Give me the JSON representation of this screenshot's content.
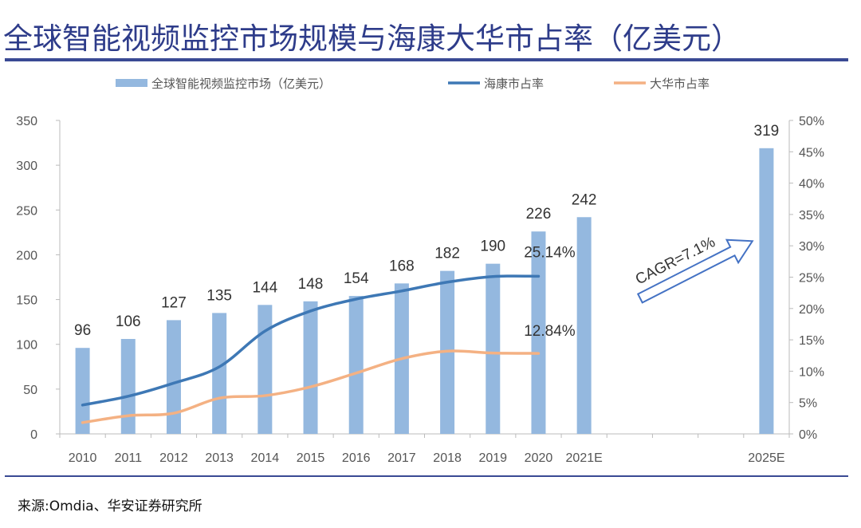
{
  "title": "全球智能视频监控市场规模与海康大华市占率（亿美元）",
  "source": "来源:Omdia、华安证券研究所",
  "chart_data": {
    "type": "bar+line",
    "categories": [
      "2010",
      "2011",
      "2012",
      "2013",
      "2014",
      "2015",
      "2016",
      "2017",
      "2018",
      "2019",
      "2020",
      "2021E",
      "",
      "",
      "",
      "2025E"
    ],
    "series": [
      {
        "name": "全球智能视频监控市场（亿美元）",
        "type": "bar",
        "axis": "left",
        "color": "#94b8df",
        "values": [
          96,
          106,
          127,
          135,
          144,
          148,
          154,
          168,
          182,
          190,
          226,
          242,
          null,
          null,
          null,
          319
        ]
      },
      {
        "name": "海康市占率",
        "type": "line",
        "axis": "right",
        "color": "#3e78b5",
        "values": [
          4.6,
          6.0,
          8.1,
          10.7,
          16.4,
          19.6,
          21.5,
          22.8,
          24.2,
          25.1,
          25.14,
          null,
          null,
          null,
          null,
          null
        ],
        "label": "25.14%"
      },
      {
        "name": "大华市占率",
        "type": "line",
        "axis": "right",
        "color": "#f4b183",
        "values": [
          1.8,
          2.9,
          3.3,
          5.7,
          6.1,
          7.5,
          9.7,
          12.0,
          13.2,
          12.9,
          12.84,
          null,
          null,
          null,
          null,
          null
        ],
        "label": "12.84%"
      }
    ],
    "left_axis": {
      "ylim": [
        0,
        350
      ],
      "ticks": [
        "0",
        "50",
        "100",
        "150",
        "200",
        "250",
        "300",
        "350"
      ]
    },
    "right_axis": {
      "ylim": [
        0,
        50
      ],
      "ticks": [
        "0%",
        "5%",
        "10%",
        "15%",
        "20%",
        "25%",
        "30%",
        "35%",
        "40%",
        "45%",
        "50%"
      ]
    },
    "annotation": "CAGR=7.1%",
    "legend": "top",
    "grid": false
  }
}
